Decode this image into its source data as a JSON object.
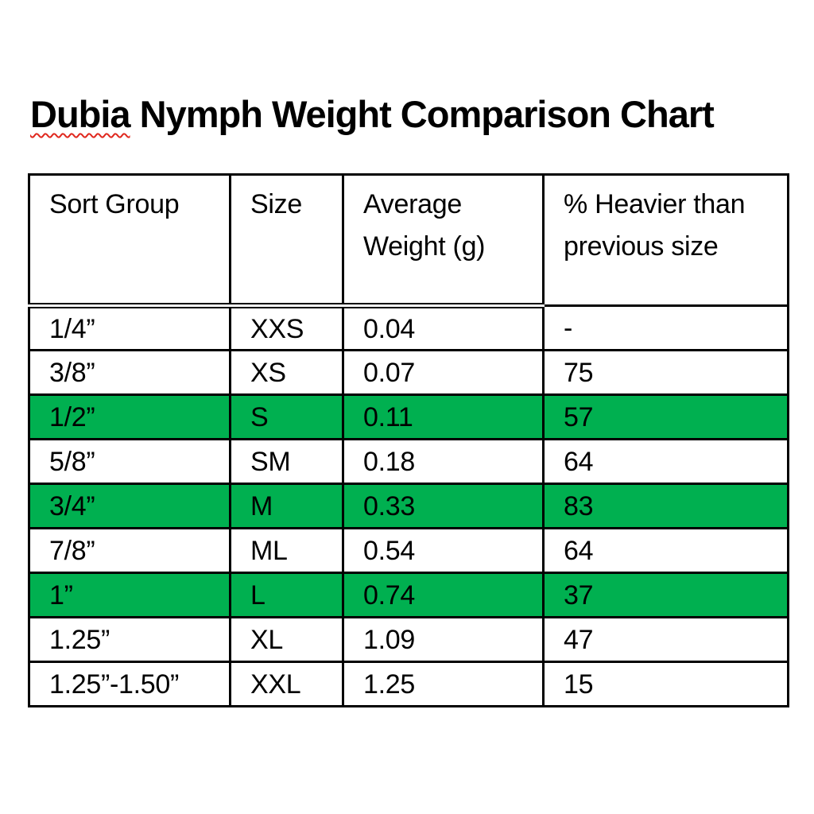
{
  "page": {
    "background": "#ffffff"
  },
  "title": {
    "misspelled_word": "Dubia",
    "rest": " Nymph Weight Comparison Chart",
    "full": "Dubia Nymph Weight Comparison Chart"
  },
  "colors": {
    "highlight_green": "#00B050",
    "spellcheck_red": "#e0281e",
    "border": "#000000",
    "text": "#000000"
  },
  "chart_data": {
    "type": "table",
    "title": "Dubia Nymph Weight Comparison Chart",
    "columns": [
      "Sort Group",
      "Size",
      "Average Weight (g)",
      "% Heavier than previous size"
    ],
    "rows": [
      {
        "sort_group": "1/4”",
        "size": "XXS",
        "avg_weight_g": "0.04",
        "pct_heavier": "-",
        "highlighted": false
      },
      {
        "sort_group": "3/8”",
        "size": "XS",
        "avg_weight_g": "0.07",
        "pct_heavier": "75",
        "highlighted": false
      },
      {
        "sort_group": "1/2”",
        "size": "S",
        "avg_weight_g": "0.11",
        "pct_heavier": "57",
        "highlighted": true
      },
      {
        "sort_group": "5/8”",
        "size": "SM",
        "avg_weight_g": "0.18",
        "pct_heavier": "64",
        "highlighted": false
      },
      {
        "sort_group": "3/4”",
        "size": "M",
        "avg_weight_g": "0.33",
        "pct_heavier": "83",
        "highlighted": true
      },
      {
        "sort_group": "7/8”",
        "size": "ML",
        "avg_weight_g": "0.54",
        "pct_heavier": "64",
        "highlighted": false
      },
      {
        "sort_group": "1”",
        "size": "L",
        "avg_weight_g": "0.74",
        "pct_heavier": "37",
        "highlighted": true
      },
      {
        "sort_group": "1.25”",
        "size": "XL",
        "avg_weight_g": "1.09",
        "pct_heavier": "47",
        "highlighted": false
      },
      {
        "sort_group": "1.25”-1.50”",
        "size": "XXL",
        "avg_weight_g": "1.25",
        "pct_heavier": "15",
        "highlighted": false
      }
    ],
    "highlighted_row_sizes": [
      "S",
      "M",
      "L"
    ],
    "layout": {
      "grid": "full-borders",
      "header_rule": "double-under-first-3-columns"
    }
  }
}
